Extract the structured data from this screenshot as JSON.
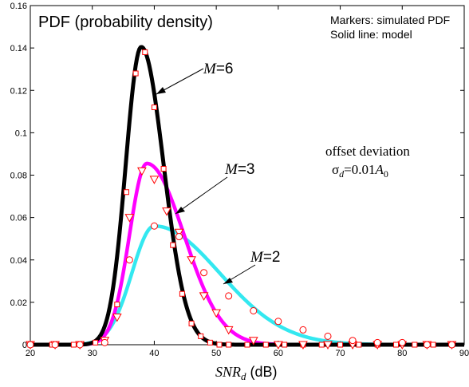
{
  "chart_data": {
    "type": "line",
    "title": "PDF (probability density)",
    "xlabel_italic": "SNR",
    "xlabel_sub": "d",
    "xlabel_unit": " (dB)",
    "xlim": [
      20,
      90
    ],
    "ylim": [
      0,
      0.16
    ],
    "xticks": [
      "20",
      "30",
      "40",
      "50",
      "60",
      "70",
      "80",
      "90"
    ],
    "yticks": [
      "0",
      "0.02",
      "0.04",
      "0.06",
      "0.08",
      "0.1",
      "0.12",
      "0.14",
      "0.16"
    ],
    "legend_markers": "Markers:  simulated PDF",
    "legend_line": "Solid line:  model",
    "offset_line1": "offset deviation",
    "offset_sigma": "σ",
    "offset_sub_d": "d",
    "offset_eq": "=0.01",
    "offset_A": "A",
    "offset_sub_0": "0",
    "series": [
      {
        "label_m": "M",
        "label_val": "=6",
        "color": "#000000",
        "marker": "square",
        "model": {
          "mean": 37.9,
          "sigmaL": 2.5,
          "sigmaR": 3.6,
          "peak": 0.1405
        },
        "x": [
          20,
          23.5,
          27,
          30.5,
          34,
          35.5,
          37,
          38.5,
          40,
          41.5,
          43,
          44.5,
          46,
          47.5,
          49,
          50.5,
          52,
          55,
          58,
          61,
          64,
          67,
          70,
          73,
          76,
          79,
          82,
          85,
          88
        ],
        "y": [
          0,
          0,
          0,
          0.001,
          0.019,
          0.072,
          0.128,
          0.138,
          0.112,
          0.083,
          0.047,
          0.024,
          0.01,
          0.004,
          0.001,
          0,
          0,
          0,
          0,
          0,
          0,
          0,
          0,
          0,
          0,
          0,
          0,
          0,
          0
        ]
      },
      {
        "label_m": "M",
        "label_val": "=3",
        "color": "#ff00ff",
        "marker": "triangle-down",
        "model": {
          "mean": 38.8,
          "sigmaL": 2.8,
          "sigmaR": 6.0,
          "peak": 0.0855
        },
        "x": [
          20,
          24,
          28,
          32,
          34,
          36,
          38,
          40,
          42,
          44,
          46,
          48,
          50,
          52,
          56,
          60,
          64,
          68,
          72,
          76,
          80,
          84,
          88
        ],
        "y": [
          0,
          0,
          0,
          0.002,
          0.013,
          0.06,
          0.082,
          0.078,
          0.063,
          0.053,
          0.04,
          0.023,
          0.015,
          0.007,
          0.002,
          0,
          0,
          0,
          0,
          0,
          0,
          0,
          0
        ]
      },
      {
        "label_m": "M",
        "label_val": "=2",
        "color": "#33e8f0",
        "marker": "circle",
        "model": {
          "mean": 40.0,
          "sigmaL": 3.6,
          "sigmaR": 10.5,
          "peak": 0.056
        },
        "x": [
          20,
          24,
          28,
          32,
          36,
          40,
          44,
          48,
          52,
          56,
          60,
          64,
          68,
          72,
          76,
          80,
          84,
          88
        ],
        "y": [
          0,
          0,
          0,
          0.001,
          0.04,
          0.056,
          0.051,
          0.034,
          0.023,
          0.016,
          0.011,
          0.007,
          0.004,
          0.002,
          0.001,
          0.001,
          0,
          0
        ]
      }
    ]
  }
}
